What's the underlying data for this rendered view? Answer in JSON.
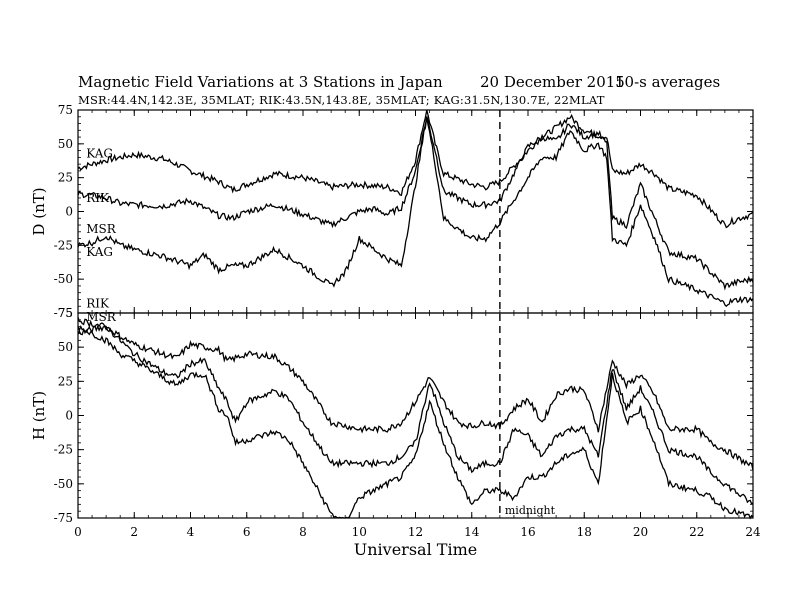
{
  "title": "Magnetic Field Variations at 3 Stations in Japan",
  "date": "20 December 2015",
  "averaging": "10-s averages",
  "stations_line": "MSR:44.4N,142.3E, 35MLAT;  RIK:43.5N,143.8E, 35MLAT;  KAG:31.5N,130.7E, 22MLAT",
  "chart_data": [
    {
      "type": "line",
      "panel": "D",
      "ylabel": "D (nT)",
      "ylim": [
        -75,
        75
      ],
      "yticks": [
        75,
        50,
        25,
        0,
        -25,
        -50,
        -75
      ],
      "xlim": [
        0,
        24
      ],
      "xticks": [
        0,
        2,
        4,
        6,
        8,
        10,
        12,
        14,
        16,
        18,
        20,
        22,
        24
      ],
      "annotation": "",
      "labels": [
        {
          "text": "KAG",
          "x": 0.15,
          "y": 43
        },
        {
          "text": "RIK",
          "x": 0.15,
          "y": 10
        },
        {
          "text": "MSR",
          "x": 0.15,
          "y": -13
        },
        {
          "text": "KAG",
          "x": 0.15,
          "y": -30
        },
        {
          "text": "RIK",
          "x": 0.15,
          "y": -68
        }
      ],
      "series": [
        {
          "x": [
            0,
            0.5,
            1,
            1.5,
            2,
            3,
            3.5,
            4,
            5,
            5.5,
            6,
            7,
            8,
            8.5,
            9,
            10,
            11,
            11.5,
            12,
            12.4,
            12.7,
            13,
            14,
            14.5,
            15,
            16,
            16.5,
            17,
            17.5,
            18,
            18.5,
            18.8,
            19,
            19.5,
            20,
            20.5,
            21,
            22,
            23,
            23.5,
            24
          ],
          "y": [
            32,
            35,
            38,
            40,
            42,
            39,
            35,
            30,
            22,
            16,
            20,
            28,
            25,
            22,
            18,
            20,
            18,
            14,
            38,
            75,
            50,
            28,
            20,
            18,
            22,
            45,
            55,
            62,
            70,
            60,
            56,
            55,
            30,
            28,
            35,
            28,
            17,
            12,
            -10,
            -5,
            -2
          ]
        },
        {
          "x": [
            0,
            0.5,
            1,
            1.5,
            2,
            3,
            4,
            5,
            5.5,
            5.8,
            6,
            7,
            8,
            9,
            10,
            10.5,
            11,
            11.5,
            12,
            12.4,
            12.7,
            13,
            14,
            14.5,
            15,
            16,
            16.5,
            17,
            17.5,
            18,
            18.5,
            18.8,
            19,
            19.5,
            20,
            20.5,
            21,
            22,
            23,
            23.5,
            24
          ],
          "y": [
            13,
            12,
            10,
            6,
            5,
            4,
            8,
            -3,
            -5,
            -2,
            0,
            5,
            -2,
            -10,
            0,
            2,
            -2,
            3,
            30,
            70,
            45,
            15,
            5,
            5,
            8,
            48,
            55,
            52,
            65,
            55,
            58,
            50,
            -5,
            -10,
            20,
            -5,
            -30,
            -35,
            -55,
            -52,
            -50
          ]
        },
        {
          "x": [
            0,
            0.5,
            1,
            1.5,
            2,
            3,
            4,
            4.5,
            5,
            5.5,
            6,
            7,
            8,
            9,
            9.5,
            10,
            11,
            11.5,
            12,
            12.4,
            12.7,
            13,
            14,
            14.5,
            15,
            16,
            16.5,
            17,
            17.5,
            18,
            18.5,
            18.8,
            19,
            19.5,
            20,
            20.5,
            21,
            22,
            23,
            23.5,
            24
          ],
          "y": [
            -25,
            -23,
            -18,
            -25,
            -28,
            -33,
            -40,
            -32,
            -43,
            -40,
            -40,
            -28,
            -40,
            -55,
            -45,
            -20,
            -35,
            -40,
            20,
            70,
            35,
            -5,
            -20,
            -20,
            -8,
            25,
            40,
            40,
            60,
            45,
            50,
            40,
            -20,
            -25,
            5,
            -20,
            -50,
            -58,
            -68,
            -65,
            -65
          ]
        }
      ]
    },
    {
      "type": "line",
      "panel": "H",
      "ylabel": "H (nT)",
      "xlabel": "Universal Time",
      "ylim": [
        -75,
        75
      ],
      "yticks": [
        75,
        50,
        25,
        0,
        -25,
        -50,
        -75
      ],
      "xlim": [
        0,
        24
      ],
      "xticks": [
        0,
        2,
        4,
        6,
        8,
        10,
        12,
        14,
        16,
        18,
        20,
        22,
        24
      ],
      "annotation": "midnight",
      "vline_x": 15,
      "labels": [
        {
          "text": "MSR",
          "x": 0.15,
          "y": 72
        }
      ],
      "series": [
        {
          "x": [
            0,
            0.5,
            1,
            1.5,
            2,
            3,
            3.5,
            4,
            4.5,
            5,
            5.3,
            5.6,
            6,
            7,
            7.5,
            8,
            9,
            10,
            11,
            11.5,
            12,
            12.5,
            13,
            13.5,
            14,
            14.5,
            15,
            15.5,
            16,
            16.5,
            17,
            17.5,
            18,
            18.5,
            19,
            19.5,
            20,
            20.5,
            21,
            22,
            22.5,
            23,
            24
          ],
          "y": [
            60,
            63,
            65,
            58,
            52,
            45,
            42,
            52,
            50,
            48,
            40,
            42,
            45,
            43,
            35,
            25,
            -5,
            -10,
            -10,
            -5,
            10,
            28,
            10,
            -5,
            -8,
            -5,
            -8,
            5,
            12,
            -5,
            15,
            20,
            18,
            -10,
            40,
            22,
            30,
            15,
            -10,
            -10,
            -20,
            -25,
            -38
          ]
        },
        {
          "x": [
            0,
            0.5,
            1,
            1.5,
            2,
            3,
            3.5,
            4,
            4.5,
            5,
            5.3,
            5.6,
            6,
            7,
            7.5,
            8,
            9,
            10,
            11,
            11.5,
            12,
            12.5,
            13,
            13.5,
            14,
            14.5,
            15,
            15.5,
            16,
            16.5,
            17,
            17.5,
            18,
            18.5,
            19,
            19.5,
            20,
            20.5,
            21,
            22,
            22.5,
            23,
            24
          ],
          "y": [
            70,
            67,
            65,
            55,
            45,
            32,
            28,
            38,
            40,
            20,
            10,
            -5,
            10,
            18,
            12,
            -5,
            -35,
            -35,
            -35,
            -30,
            -20,
            25,
            -5,
            -30,
            -40,
            -35,
            -35,
            -10,
            -15,
            -30,
            -15,
            -10,
            -10,
            -30,
            35,
            5,
            20,
            0,
            -25,
            -30,
            -42,
            -50,
            -65
          ]
        },
        {
          "x": [
            0,
            0.5,
            1,
            1.5,
            2,
            3,
            3.5,
            4,
            4.5,
            5,
            5.3,
            5.6,
            6,
            7,
            7.5,
            8,
            9,
            9.5,
            10,
            11,
            11.5,
            12,
            12.5,
            13,
            13.5,
            14,
            14.5,
            15,
            15.5,
            16,
            16.5,
            17,
            17.5,
            18,
            18.5,
            19,
            19.5,
            20,
            20.5,
            21,
            22,
            22.5,
            23,
            24
          ],
          "y": [
            65,
            60,
            55,
            45,
            40,
            28,
            22,
            30,
            30,
            5,
            0,
            -20,
            -18,
            -12,
            -18,
            -35,
            -72,
            -78,
            -60,
            -50,
            -45,
            -30,
            10,
            -20,
            -45,
            -65,
            -55,
            -55,
            -60,
            -45,
            -45,
            -35,
            -28,
            -25,
            -50,
            30,
            -5,
            5,
            -20,
            -50,
            -55,
            -60,
            -68,
            -75
          ]
        }
      ]
    }
  ]
}
